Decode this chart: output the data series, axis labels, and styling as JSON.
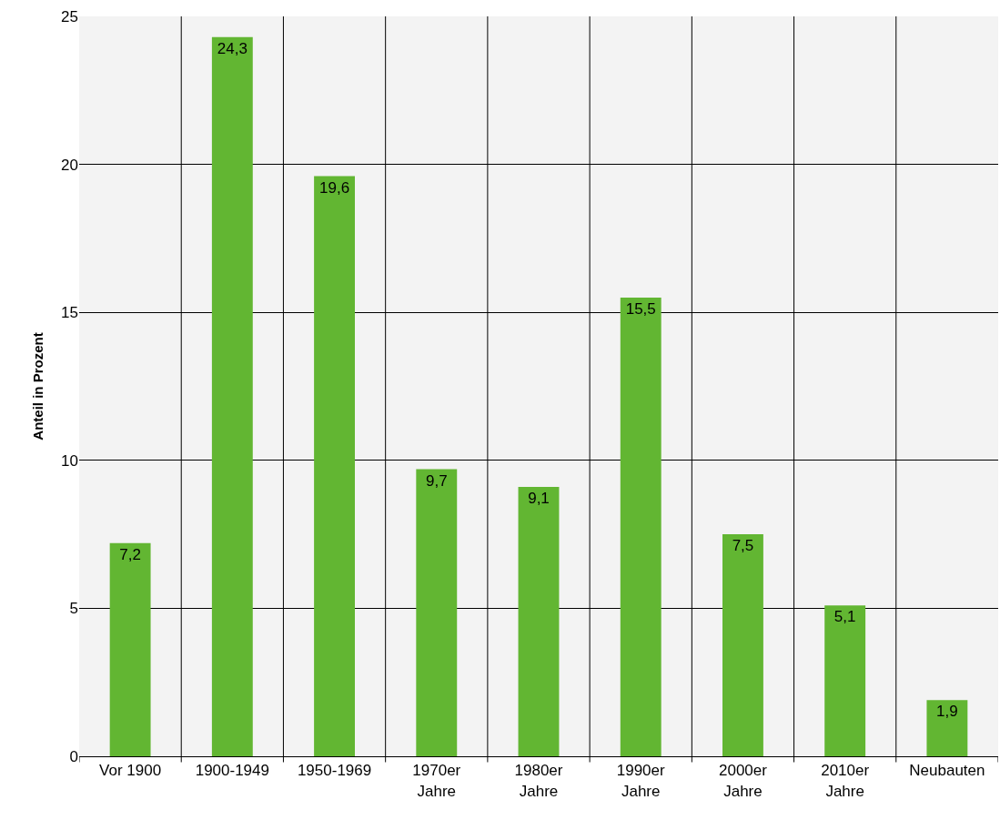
{
  "chart_data": {
    "type": "bar",
    "ylabel": "Anteil in Prozent",
    "categories": [
      "Vor 1900",
      "1900-1949",
      "1950-1969",
      "1970er\nJahre",
      "1980er\nJahre",
      "1990er\nJahre",
      "2000er\nJahre",
      "2010er\nJahre",
      "Neubauten"
    ],
    "values": [
      7.2,
      24.3,
      19.6,
      9.7,
      9.1,
      15.5,
      7.5,
      5.1,
      1.9
    ],
    "value_labels": [
      "7,2",
      "24,3",
      "19,6",
      "9,7",
      "9,1",
      "15,5",
      "7,5",
      "5,1",
      "1,9"
    ],
    "color": "#62b632",
    "ylim": [
      0,
      25
    ],
    "yticks": [
      0,
      5,
      10,
      15,
      20,
      25
    ],
    "grid": true
  }
}
